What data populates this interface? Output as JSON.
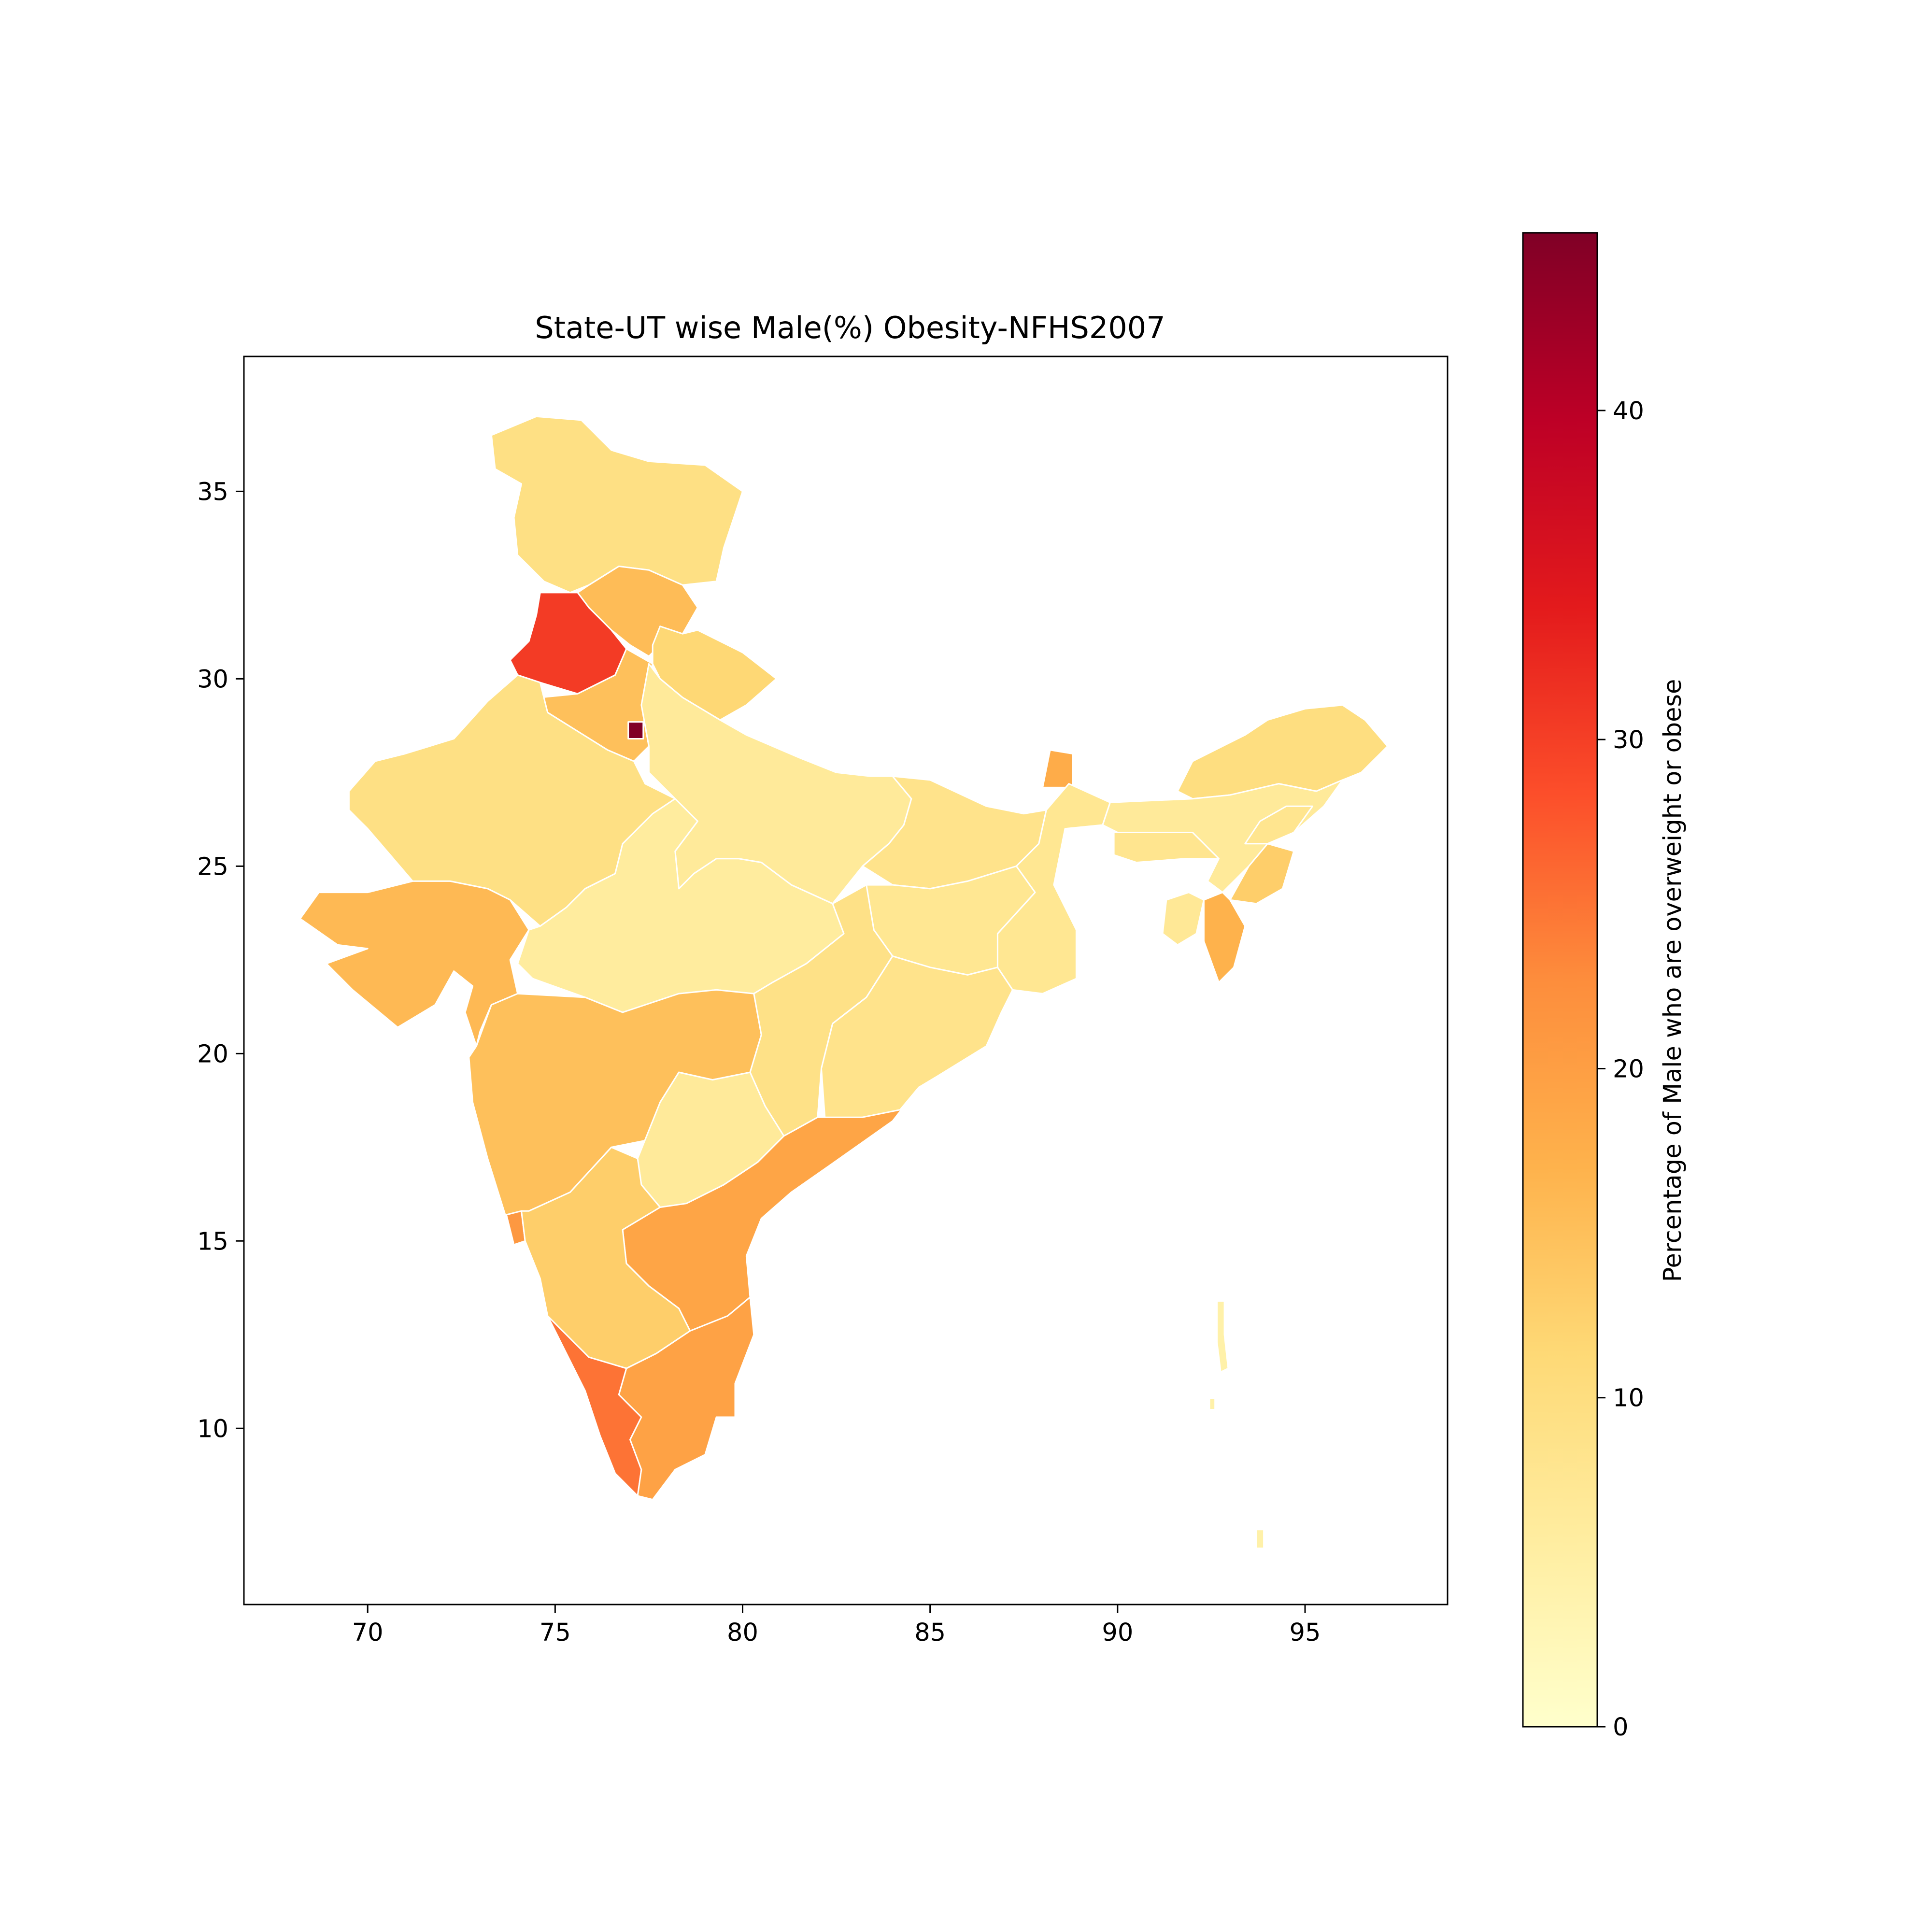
{
  "chart_data": {
    "type": "choropleth",
    "title": "State-UT wise Male(%) Obesity-NFHS2007",
    "x_ticks": [
      70,
      75,
      80,
      85,
      90,
      95
    ],
    "y_ticks": [
      10,
      15,
      20,
      25,
      30,
      35
    ],
    "xlim": [
      66.7,
      98.8
    ],
    "ylim": [
      5.3,
      38.6
    ],
    "colorbar": {
      "label": "Percentage of Male who are overweight or obese",
      "ticks": [
        0,
        10,
        20,
        30,
        40
      ],
      "range": [
        0,
        45.4
      ],
      "colormap": "YlOrRd",
      "placement": "right"
    },
    "regions": [
      {
        "name": "Jammu and Kashmir",
        "value": 9.5
      },
      {
        "name": "Himachal Pradesh",
        "value": 15.5
      },
      {
        "name": "Punjab",
        "value": 30.5
      },
      {
        "name": "Uttarakhand",
        "value": 11.5
      },
      {
        "name": "Haryana",
        "value": 15.0
      },
      {
        "name": "Delhi",
        "value": 45.4
      },
      {
        "name": "Rajasthan",
        "value": 9.5
      },
      {
        "name": "Uttar Pradesh",
        "value": 6.5
      },
      {
        "name": "Bihar",
        "value": 8.5
      },
      {
        "name": "Sikkim",
        "value": 18.0
      },
      {
        "name": "Arunachal Pradesh",
        "value": 10.0
      },
      {
        "name": "Assam",
        "value": 6.5
      },
      {
        "name": "Meghalaya",
        "value": 8.0
      },
      {
        "name": "Nagaland",
        "value": 8.0
      },
      {
        "name": "Manipur",
        "value": 13.0
      },
      {
        "name": "Mizoram",
        "value": 17.0
      },
      {
        "name": "Tripura",
        "value": 7.0
      },
      {
        "name": "West Bengal",
        "value": 7.5
      },
      {
        "name": "Jharkhand",
        "value": 7.5
      },
      {
        "name": "Madhya Pradesh",
        "value": 6.0
      },
      {
        "name": "Gujarat",
        "value": 16.0
      },
      {
        "name": "Maharashtra",
        "value": 15.0
      },
      {
        "name": "Chhattisgarh",
        "value": 9.0
      },
      {
        "name": "Odisha",
        "value": 8.5
      },
      {
        "name": "Telangana",
        "value": 6.5
      },
      {
        "name": "Andhra Pradesh",
        "value": 19.0
      },
      {
        "name": "Goa",
        "value": 21.0
      },
      {
        "name": "Karnataka",
        "value": 13.0
      },
      {
        "name": "Kerala",
        "value": 25.0
      },
      {
        "name": "Tamil Nadu",
        "value": 19.5
      },
      {
        "name": "Andaman and Nicobar Islands",
        "value": 4.5
      }
    ]
  }
}
